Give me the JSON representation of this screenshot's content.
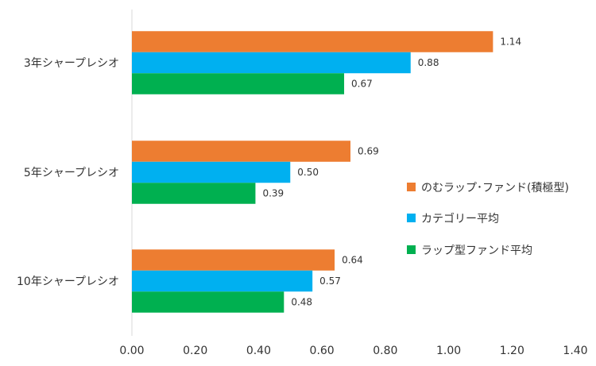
{
  "chart_data": {
    "type": "bar",
    "orientation": "horizontal",
    "categories": [
      "3年シャープレシオ",
      "5年シャープレシオ",
      "10年シャープレシオ"
    ],
    "series": [
      {
        "name": "のむラップ･ファンド(積極型)",
        "values": [
          1.14,
          0.69,
          0.64
        ],
        "color": "#ED7D31"
      },
      {
        "name": "カテゴリー平均",
        "values": [
          0.88,
          0.5,
          0.57
        ],
        "color": "#00B0F0"
      },
      {
        "name": "ラップ型ファンド平均",
        "values": [
          0.67,
          0.39,
          0.48
        ],
        "color": "#00B050"
      }
    ],
    "data_labels": [
      [
        "1.14",
        "0.69",
        "0.64"
      ],
      [
        "0.88",
        "0.50",
        "0.57"
      ],
      [
        "0.67",
        "0.39",
        "0.48"
      ]
    ],
    "xlim": [
      0,
      1.4
    ],
    "x_ticks": [
      0,
      0.2,
      0.4,
      0.6,
      0.8,
      1.0,
      1.2,
      1.4
    ],
    "x_tick_labels": [
      "0.00",
      "0.20",
      "0.40",
      "0.60",
      "0.80",
      "1.00",
      "1.20",
      "1.40"
    ],
    "title": "",
    "xlabel": "",
    "ylabel": "",
    "grid": false,
    "legend_position": "right"
  }
}
